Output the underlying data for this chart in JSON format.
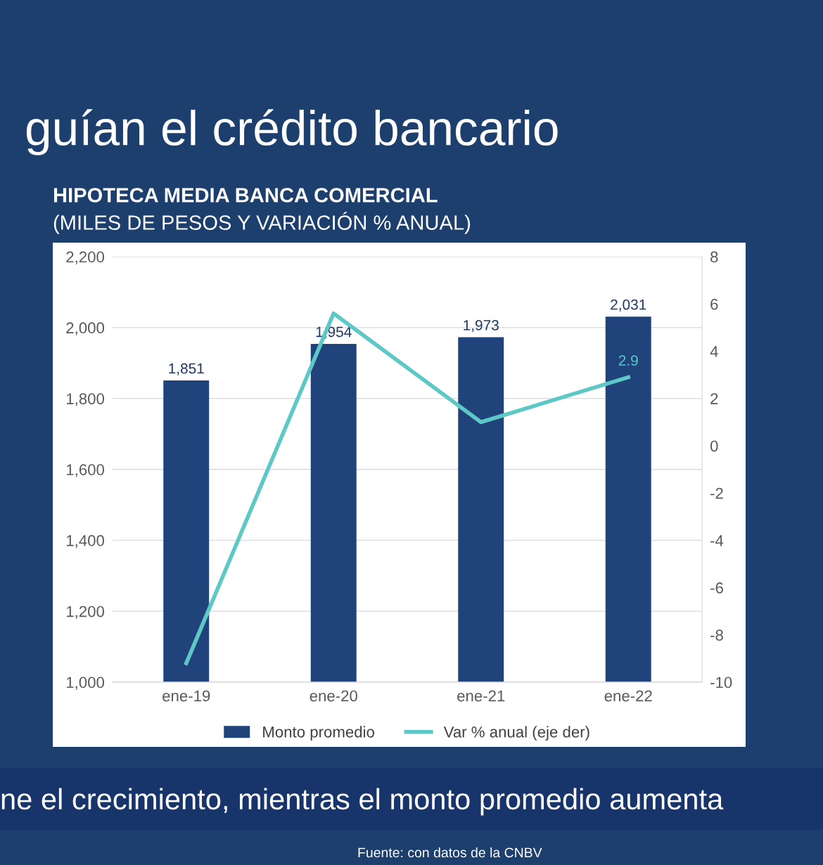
{
  "chart_data": {
    "type": "bar",
    "title": "HIPOTECA MEDIA BANCA COMERCIAL",
    "subtitle": "(MILES DE PESOS Y VARIACIÓN % ANUAL)",
    "annotations": [
      "guían el crédito bancario",
      "ne el crecimiento, mientras el monto promedio aumenta",
      "Fuente: con datos de la CNBV"
    ],
    "categories": [
      "ene-19",
      "ene-20",
      "ene-21",
      "ene-22"
    ],
    "series": [
      {
        "name": "Monto promedio",
        "color": "#1f437a",
        "values": [
          1851,
          1954,
          1973,
          2031
        ],
        "value_labels": [
          "1,851",
          "1,954",
          "1,973",
          "2,031"
        ]
      },
      {
        "name": "Var % anual (eje der)",
        "type": "line",
        "axis": "y2",
        "color": "#5ec8c6",
        "values": [
          -9.2,
          5.6,
          1.0,
          2.9
        ],
        "value_labels": [
          null,
          null,
          null,
          "2.9"
        ]
      }
    ],
    "ylim": [
      1000,
      2200
    ],
    "yticks": [
      {
        "value": 1000,
        "label": "1,000"
      },
      {
        "value": 1200,
        "label": "1,200"
      },
      {
        "value": 1400,
        "label": "1,400"
      },
      {
        "value": 1600,
        "label": "1,600"
      },
      {
        "value": 1800,
        "label": "1,800"
      },
      {
        "value": 2000,
        "label": "2,000"
      },
      {
        "value": 2200,
        "label": "2,200"
      }
    ],
    "y2lim": [
      -10,
      8
    ],
    "y2ticks": [
      -10,
      -8,
      -6,
      -4,
      -2,
      0,
      2,
      4,
      6,
      8
    ],
    "grid": "y",
    "legend": "bottom",
    "marker": "none",
    "line_style": "solid"
  }
}
